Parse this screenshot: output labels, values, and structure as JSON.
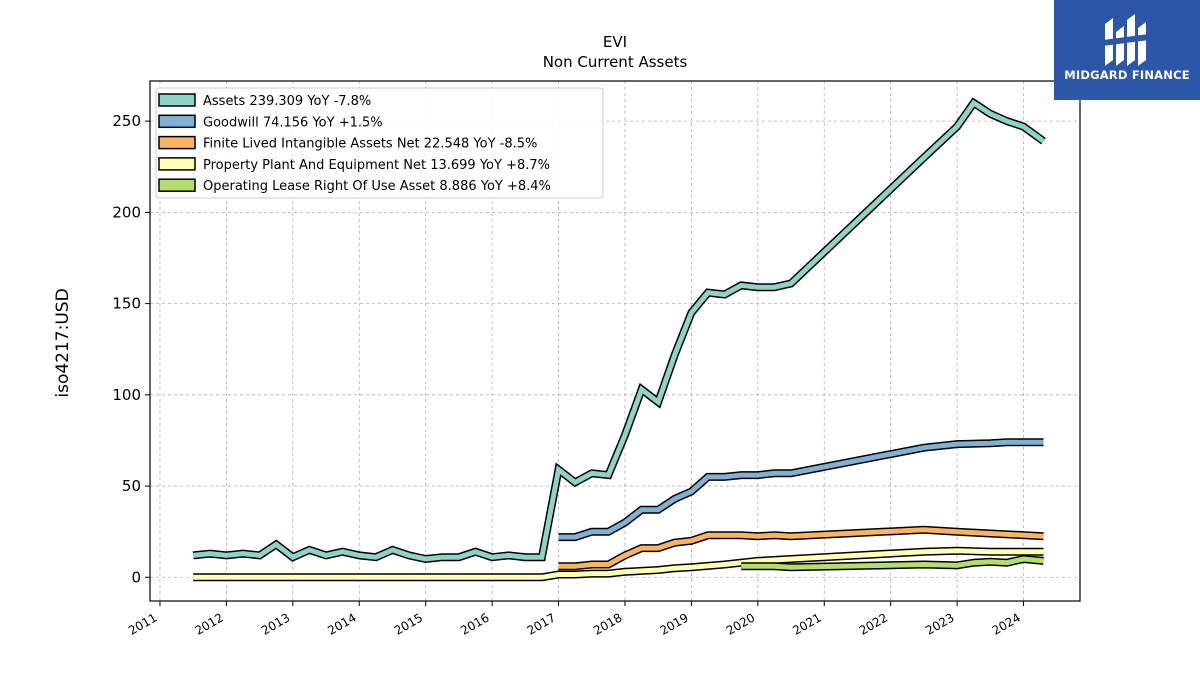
{
  "chart_data": {
    "type": "line",
    "title": "EVI",
    "subtitle": "Non Current  Assets",
    "ylabel": "iso4217:USD",
    "xlabel": "",
    "xlim": [
      2010.85,
      2024.85
    ],
    "ylim": [
      -13,
      272
    ],
    "yticks": [
      0,
      50,
      100,
      150,
      200,
      250
    ],
    "xticks": [
      2011,
      2012,
      2013,
      2014,
      2015,
      2016,
      2017,
      2018,
      2019,
      2020,
      2021,
      2022,
      2023,
      2024
    ],
    "grid": true,
    "legend_position": "top-left",
    "series": [
      {
        "name": "Assets  239.309 YoY -7.8%",
        "color": "#8dd3c7",
        "points": [
          [
            2011.5,
            12
          ],
          [
            2011.75,
            13
          ],
          [
            2012.0,
            12
          ],
          [
            2012.25,
            13
          ],
          [
            2012.5,
            12
          ],
          [
            2012.75,
            18
          ],
          [
            2013.0,
            11
          ],
          [
            2013.25,
            15
          ],
          [
            2013.5,
            12
          ],
          [
            2013.75,
            14
          ],
          [
            2014.0,
            12
          ],
          [
            2014.25,
            11
          ],
          [
            2014.5,
            15
          ],
          [
            2014.75,
            12
          ],
          [
            2015.0,
            10
          ],
          [
            2015.25,
            11
          ],
          [
            2015.5,
            11
          ],
          [
            2015.75,
            14
          ],
          [
            2016.0,
            11
          ],
          [
            2016.25,
            12
          ],
          [
            2016.5,
            11
          ],
          [
            2016.75,
            11
          ],
          [
            2017.0,
            59
          ],
          [
            2017.25,
            52
          ],
          [
            2017.5,
            57
          ],
          [
            2017.75,
            56
          ],
          [
            2018.0,
            78
          ],
          [
            2018.25,
            103
          ],
          [
            2018.5,
            96
          ],
          [
            2018.75,
            122
          ],
          [
            2019.0,
            145
          ],
          [
            2019.25,
            156
          ],
          [
            2019.5,
            155
          ],
          [
            2019.75,
            160
          ],
          [
            2020.0,
            159
          ],
          [
            2020.25,
            159
          ],
          [
            2020.5,
            161
          ],
          [
            2022.5,
            230
          ],
          [
            2023.0,
            247
          ],
          [
            2023.25,
            260
          ],
          [
            2023.5,
            254
          ],
          [
            2023.75,
            250
          ],
          [
            2024.0,
            247
          ],
          [
            2024.3,
            239
          ]
        ]
      },
      {
        "name": "Goodwill  74.156 YoY +1.5%",
        "color": "#80b1d3",
        "points": [
          [
            2017.0,
            22
          ],
          [
            2017.25,
            22
          ],
          [
            2017.5,
            25
          ],
          [
            2017.75,
            25
          ],
          [
            2018.0,
            30
          ],
          [
            2018.25,
            37
          ],
          [
            2018.5,
            37
          ],
          [
            2018.75,
            43
          ],
          [
            2019.0,
            47
          ],
          [
            2019.25,
            55
          ],
          [
            2019.5,
            55
          ],
          [
            2019.75,
            56
          ],
          [
            2020.0,
            56
          ],
          [
            2020.25,
            57
          ],
          [
            2020.5,
            57
          ],
          [
            2022.5,
            71
          ],
          [
            2023.0,
            73
          ],
          [
            2023.5,
            73.5
          ],
          [
            2023.75,
            74
          ],
          [
            2024.3,
            74
          ]
        ]
      },
      {
        "name": "Finite Lived Intangible Assets Net  22.548 YoY -8.5%",
        "color": "#fdb462",
        "points": [
          [
            2017.0,
            6
          ],
          [
            2017.25,
            6
          ],
          [
            2017.5,
            7
          ],
          [
            2017.75,
            7
          ],
          [
            2018.0,
            12
          ],
          [
            2018.25,
            16
          ],
          [
            2018.5,
            16
          ],
          [
            2018.75,
            19
          ],
          [
            2019.0,
            20
          ],
          [
            2019.25,
            23
          ],
          [
            2019.5,
            23
          ],
          [
            2019.75,
            23
          ],
          [
            2020.0,
            22.5
          ],
          [
            2020.25,
            23
          ],
          [
            2020.5,
            22.5
          ],
          [
            2022.5,
            26
          ],
          [
            2023.0,
            25
          ],
          [
            2023.5,
            24
          ],
          [
            2024.3,
            22.5
          ]
        ]
      },
      {
        "name": "Property Plant And Equipment Net  13.699 YoY +8.7%",
        "color": "#ffffb3",
        "points": [
          [
            2011.5,
            0
          ],
          [
            2012.0,
            0
          ],
          [
            2013.0,
            0
          ],
          [
            2014.0,
            0
          ],
          [
            2015.0,
            0
          ],
          [
            2016.0,
            0
          ],
          [
            2016.75,
            0
          ],
          [
            2017.0,
            1.5
          ],
          [
            2017.25,
            1.5
          ],
          [
            2017.5,
            2
          ],
          [
            2017.75,
            2
          ],
          [
            2018.0,
            3
          ],
          [
            2018.25,
            3.5
          ],
          [
            2018.5,
            4
          ],
          [
            2018.75,
            5
          ],
          [
            2019.0,
            5.5
          ],
          [
            2019.5,
            7
          ],
          [
            2020.0,
            9
          ],
          [
            2020.5,
            10
          ],
          [
            2022.5,
            14
          ],
          [
            2023.0,
            14.5
          ],
          [
            2023.5,
            14
          ],
          [
            2024.3,
            14
          ]
        ]
      },
      {
        "name": "Operating Lease Right Of Use Asset  8.886 YoY +8.4%",
        "color": "#b3de69",
        "points": [
          [
            2019.75,
            6
          ],
          [
            2020.0,
            6
          ],
          [
            2020.25,
            6
          ],
          [
            2020.5,
            5.5
          ],
          [
            2022.5,
            7
          ],
          [
            2023.0,
            6.5
          ],
          [
            2023.25,
            8
          ],
          [
            2023.5,
            8.5
          ],
          [
            2023.75,
            8
          ],
          [
            2024.0,
            10
          ],
          [
            2024.3,
            9
          ]
        ]
      }
    ]
  },
  "brand": {
    "name": "MIDGARD FINANCE",
    "color": "#2c56a8"
  }
}
